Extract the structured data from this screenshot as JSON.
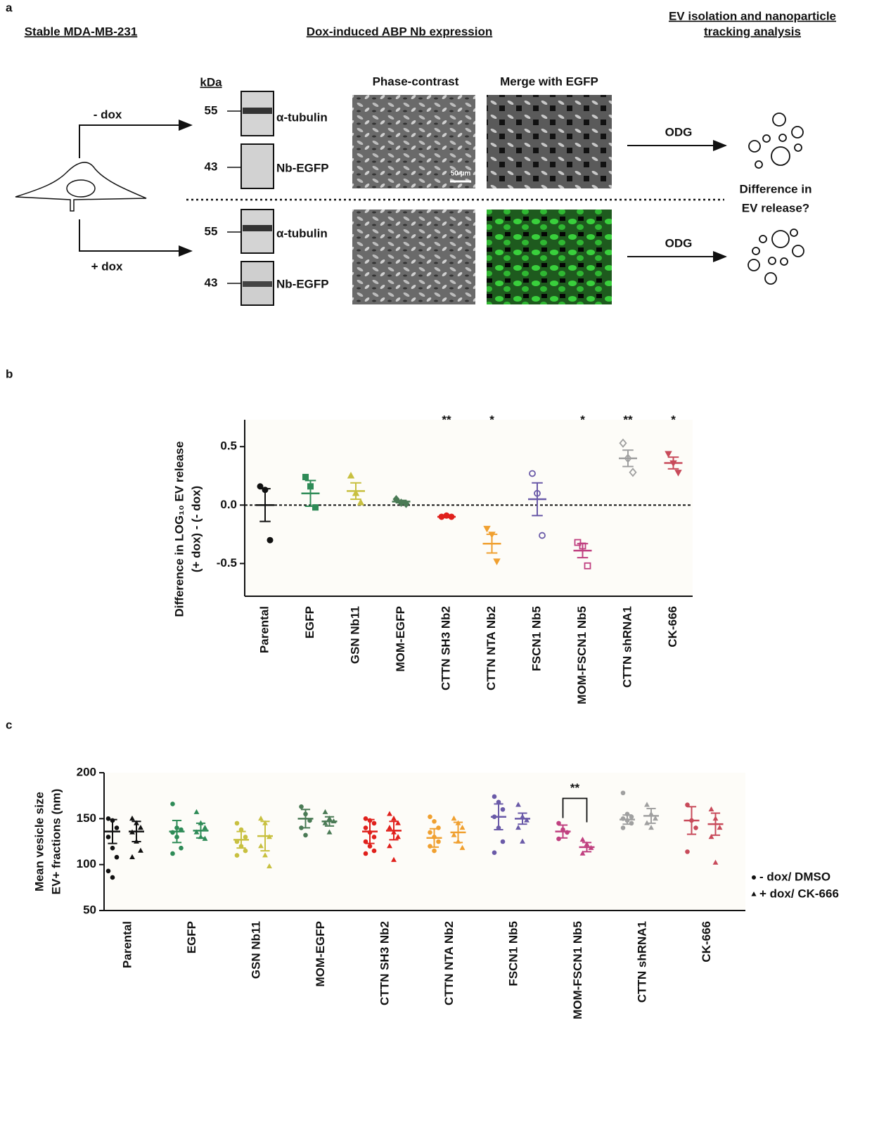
{
  "panel_a": {
    "label": "a",
    "header_left": "Stable MDA-MB-231",
    "header_middle": "Dox-induced ABP Nb expression",
    "header_right": [
      "EV isolation and nanoparticle",
      "tracking analysis"
    ],
    "kda": "kDa",
    "markers": [
      "55",
      "43",
      "55",
      "43"
    ],
    "blot_labels": [
      "α-tubulin",
      "Nb-EGFP",
      "α-tubulin",
      "Nb-EGFP"
    ],
    "image_headers": [
      "Phase-contrast",
      "Merge with EGFP"
    ],
    "scale_bar": "50 µm",
    "conditions": [
      "- dox",
      "+ dox"
    ],
    "odg": [
      "ODG",
      "ODG"
    ],
    "question": [
      "Difference in",
      "EV release?"
    ]
  },
  "panel_b_label": "b",
  "panel_c_label": "c",
  "chart_data": [
    {
      "type": "dotplot",
      "y_label": [
        "Difference in LOG₁₀ EV release",
        "(+ dox) - (- dox)"
      ],
      "ylim": [
        -0.78,
        0.73
      ],
      "yticks": [
        {
          "value": 0.5,
          "label": "0.5"
        },
        {
          "value": 0,
          "label": "0.0"
        },
        {
          "value": -0.5,
          "label": "-0.5"
        }
      ],
      "groups": [
        {
          "category": "Parental",
          "color": "#111111",
          "marker": "circle",
          "values": [
            0.16,
            0.13,
            -0.3
          ],
          "mean": 0.0,
          "error": 0.14
        },
        {
          "category": "EGFP",
          "color": "#2e8b57",
          "marker": "square",
          "values": [
            0.24,
            0.16,
            -0.02
          ],
          "mean": 0.1,
          "error": 0.11
        },
        {
          "category": "GSN Nb11",
          "color": "#c8c040",
          "marker": "triangle",
          "values": [
            0.25,
            0.1,
            0.02
          ],
          "mean": 0.12,
          "error": 0.07
        },
        {
          "category": "MOM-EGFP",
          "color": "#4a7a55",
          "marker": "diamond",
          "values": [
            0.05,
            0.02,
            0.01
          ],
          "mean": 0.03,
          "error": 0.01
        },
        {
          "category": "CTTN SH3 Nb2",
          "color": "#e0201c",
          "marker": "circle",
          "values": [
            -0.1,
            -0.09,
            -0.1
          ],
          "mean": -0.1,
          "error": 0.005,
          "annotation": "**"
        },
        {
          "category": "CTTN NTA Nb2",
          "color": "#f0a030",
          "marker": "triangle-down",
          "values": [
            -0.2,
            -0.25,
            -0.48
          ],
          "mean": -0.33,
          "error": 0.08,
          "annotation": "*"
        },
        {
          "category": "FSCN1 Nb5",
          "color": "#6a5aa8",
          "marker": "circle-open",
          "values": [
            0.27,
            0.1,
            -0.26
          ],
          "mean": 0.05,
          "error": 0.14
        },
        {
          "category": "MOM-FSCN1 Nb5",
          "color": "#c04080",
          "marker": "square-open",
          "values": [
            -0.32,
            -0.35,
            -0.52
          ],
          "mean": -0.39,
          "error": 0.06,
          "annotation": "*"
        },
        {
          "category": "CTTN shRNA1",
          "color": "#a0a0a0",
          "marker": "diamond-open",
          "values": [
            0.53,
            0.4,
            0.28
          ],
          "mean": 0.4,
          "error": 0.07,
          "annotation": "**"
        },
        {
          "category": "CK-666",
          "color": "#c84a5a",
          "marker": "triangle-down",
          "values": [
            0.44,
            0.36,
            0.28
          ],
          "mean": 0.36,
          "error": 0.05,
          "annotation": "*"
        }
      ]
    },
    {
      "type": "dotplot-paired",
      "y_label": [
        "Mean vesicle size",
        "EV+ fractions (nm)"
      ],
      "ylim": [
        50,
        200
      ],
      "yticks": [
        50,
        100,
        150,
        200
      ],
      "series": [
        {
          "name": "- dox/ DMSO",
          "marker": "circle"
        },
        {
          "name": "+ dox/ CK-666",
          "marker": "triangle"
        }
      ],
      "groups": [
        {
          "category": "Parental",
          "color": "#111111",
          "sets": [
            {
              "values": [
                150,
                148,
                140,
                130,
                118,
                108,
                93,
                86
              ],
              "mean": 136,
              "error": 13
            },
            {
              "values": [
                150,
                145,
                140,
                135,
                125,
                115,
                108
              ],
              "mean": 136,
              "error": 11
            }
          ]
        },
        {
          "category": "EGFP",
          "color": "#2e8b57",
          "sets": [
            {
              "values": [
                166,
                140,
                138,
                135,
                130,
                118,
                112
              ],
              "mean": 136,
              "error": 12
            },
            {
              "values": [
                157,
                145,
                140,
                135,
                130,
                128
              ],
              "mean": 137,
              "error": 8
            }
          ]
        },
        {
          "category": "GSN Nb11",
          "color": "#c8c040",
          "sets": [
            {
              "values": [
                145,
                138,
                130,
                125,
                120,
                115,
                110
              ],
              "mean": 127,
              "error": 9
            },
            {
              "values": [
                150,
                145,
                130,
                120,
                110,
                98
              ],
              "mean": 131,
              "error": 16
            }
          ]
        },
        {
          "category": "MOM-EGFP",
          "color": "#4a7a55",
          "sets": [
            {
              "values": [
                163,
                155,
                148,
                140,
                132
              ],
              "mean": 150,
              "error": 10
            },
            {
              "values": [
                157,
                150,
                147,
                145,
                135
              ],
              "mean": 147,
              "error": 5
            }
          ]
        },
        {
          "category": "CTTN SH3 Nb2",
          "color": "#e0201c",
          "sets": [
            {
              "values": [
                150,
                148,
                145,
                140,
                135,
                130,
                125,
                120,
                115,
                112
              ],
              "mean": 136,
              "error": 13
            },
            {
              "values": [
                155,
                150,
                145,
                140,
                135,
                130,
                120,
                105
              ],
              "mean": 137,
              "error": 10
            }
          ]
        },
        {
          "category": "CTTN NTA Nb2",
          "color": "#f0a030",
          "sets": [
            {
              "values": [
                152,
                147,
                140,
                135,
                130,
                125,
                120,
                115
              ],
              "mean": 129,
              "error": 10
            },
            {
              "values": [
                150,
                145,
                140,
                132,
                125,
                118
              ],
              "mean": 135,
              "error": 11
            }
          ]
        },
        {
          "category": "FSCN1 Nb5",
          "color": "#6a5aa8",
          "sets": [
            {
              "values": [
                174,
                168,
                160,
                152,
                140,
                125,
                113
              ],
              "mean": 152,
              "error": 14
            },
            {
              "values": [
                165,
                152,
                148,
                140,
                125
              ],
              "mean": 150,
              "error": 6
            }
          ]
        },
        {
          "category": "MOM-FSCN1 Nb5",
          "color": "#c04080",
          "annotation": "**",
          "sets": [
            {
              "values": [
                145,
                138,
                135,
                128
              ],
              "mean": 136,
              "error": 7
            },
            {
              "values": [
                127,
                122,
                118,
                112
              ],
              "mean": 119,
              "error": 5
            }
          ]
        },
        {
          "category": "CTTN shRNA1",
          "color": "#a0a0a0",
          "sets": [
            {
              "values": [
                178,
                155,
                152,
                150,
                148,
                145,
                140
              ],
              "mean": 149,
              "error": 5
            },
            {
              "values": [
                165,
                155,
                150,
                145,
                140
              ],
              "mean": 153,
              "error": 8
            }
          ]
        },
        {
          "category": "CK-666",
          "color": "#c84a5a",
          "sets": [
            {
              "values": [
                165,
                148,
                140,
                114
              ],
              "mean": 148,
              "error": 15
            },
            {
              "values": [
                160,
                150,
                140,
                130,
                102
              ],
              "mean": 144,
              "error": 12
            }
          ]
        }
      ]
    }
  ]
}
